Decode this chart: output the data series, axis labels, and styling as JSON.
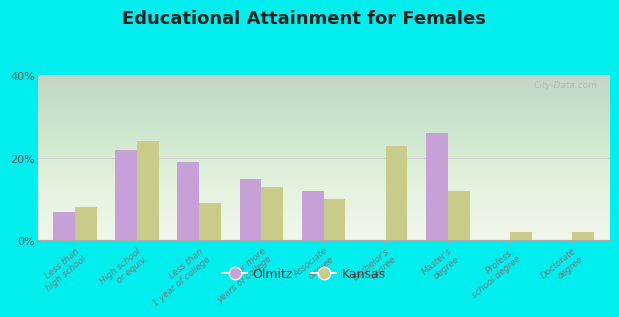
{
  "title": "Educational Attainment for Females",
  "categories": [
    "Less than\nhigh school",
    "High school\nor equiv.",
    "Less than\n1 year of college",
    "1 or more\nyears of college",
    "Associate\ndegree",
    "Bachelor's\ndegree",
    "Master's\ndegree",
    "Profess.\nschool degree",
    "Doctorate\ndegree"
  ],
  "olmitz_values": [
    7,
    22,
    19,
    15,
    12,
    0,
    26,
    0,
    0
  ],
  "kansas_values": [
    8,
    24,
    9,
    13,
    10,
    23,
    12,
    2,
    2
  ],
  "olmitz_color": "#c8a0d8",
  "kansas_color": "#c8cc88",
  "background_color": "#00eeee",
  "ylim": [
    0,
    40
  ],
  "yticks": [
    0,
    20,
    40
  ],
  "ytick_labels": [
    "0%",
    "20%",
    "40%"
  ],
  "bar_width": 0.35,
  "legend_labels": [
    "Olmitz",
    "Kansas"
  ],
  "watermark": "City-Data.com"
}
